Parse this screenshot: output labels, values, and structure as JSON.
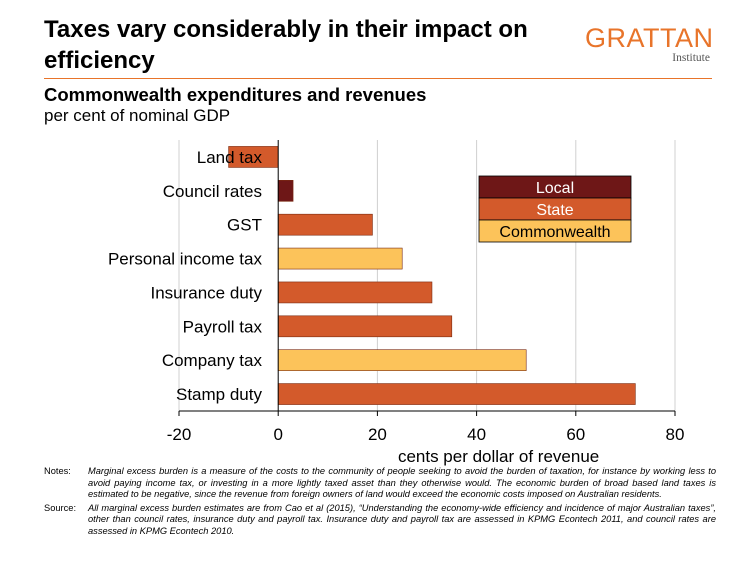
{
  "header": {
    "title": "Taxes vary considerably in their impact on efficiency",
    "subtitle": "Commonwealth expenditures and revenues",
    "subtitle2": "per cent of nominal GDP"
  },
  "logo": {
    "main": "GRATTAN",
    "sub": "Institute"
  },
  "colors": {
    "local": "#6e1717",
    "state": "#d35a2b",
    "commonwealth": "#fcc35a",
    "accent": "#e8742a",
    "grid": "#d0d0d0"
  },
  "chart_data": {
    "type": "bar",
    "orientation": "horizontal",
    "categories": [
      "Land tax",
      "Council rates",
      "GST",
      "Personal income tax",
      "Insurance duty",
      "Payroll tax",
      "Company tax",
      "Stamp duty"
    ],
    "values": [
      -10,
      3,
      19,
      25,
      31,
      35,
      50,
      72
    ],
    "levels": [
      "State",
      "Local",
      "State",
      "Commonwealth",
      "State",
      "State",
      "Commonwealth",
      "State"
    ],
    "xlabel": "cents per dollar of revenue",
    "xlim": [
      -20,
      80
    ],
    "xticks": [
      -20,
      0,
      20,
      40,
      60,
      80
    ],
    "grid": true,
    "legend": {
      "position": "top-right",
      "entries": [
        {
          "name": "Local",
          "color": "#6e1717",
          "text_color": "#ffffff"
        },
        {
          "name": "State",
          "color": "#d35a2b",
          "text_color": "#ffffff"
        },
        {
          "name": "Commonwealth",
          "color": "#fcc35a",
          "text_color": "#000000"
        }
      ]
    }
  },
  "notes": {
    "notes_label": "Notes:",
    "notes_text": "Marginal excess burden is a measure of the costs to the community of people seeking to avoid the burden of taxation, for instance by working less to avoid paying income tax, or investing in a more lightly taxed asset than they otherwise would. The economic burden of broad based land taxes is estimated to be negative, since the revenue from foreign owners of land would exceed the economic costs imposed on Australian residents.",
    "source_label": "Source:",
    "source_text": "All marginal excess burden estimates are from Cao et al (2015), “Understanding the economy-wide efficiency and incidence of major Australian taxes”, other than council rates, insurance duty and payroll tax. Insurance duty and payroll tax are assessed in KPMG Econtech 2011, and council rates are assessed in KPMG Econtech 2010."
  }
}
